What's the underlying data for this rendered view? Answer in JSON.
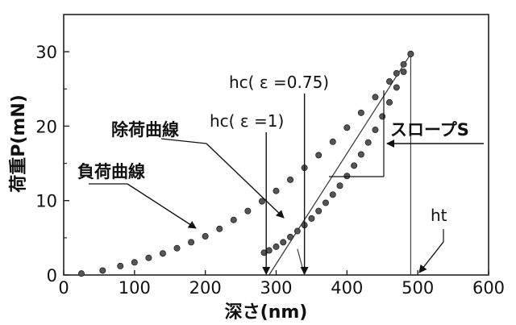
{
  "chart_data": {
    "type": "scatter",
    "xlabel": "深さ(nm)",
    "ylabel": "荷重P(mN)",
    "xlim": [
      0,
      600
    ],
    "ylim": [
      0,
      35
    ],
    "xticks": [
      0,
      100,
      200,
      300,
      400,
      500,
      600
    ],
    "yticks": [
      0,
      10,
      20,
      30
    ],
    "grid": false,
    "series": [
      {
        "name": "負荷曲線",
        "x": [
          25,
          55,
          80,
          100,
          120,
          140,
          160,
          180,
          200,
          220,
          240,
          260,
          280,
          300,
          320,
          340,
          360,
          380,
          400,
          420,
          440,
          460,
          470,
          480,
          490
        ],
        "y": [
          0.2,
          0.6,
          1.2,
          1.7,
          2.3,
          2.9,
          3.6,
          4.4,
          5.2,
          6.2,
          7.4,
          8.6,
          9.9,
          11.3,
          12.8,
          14.4,
          16.1,
          17.9,
          19.8,
          21.8,
          23.9,
          26.0,
          27.1,
          28.3,
          29.7
        ]
      },
      {
        "name": "除荷曲線",
        "x": [
          490,
          480,
          470,
          460,
          450,
          440,
          430,
          420,
          410,
          400,
          390,
          380,
          370,
          360,
          350,
          340,
          330,
          320,
          310,
          300,
          290,
          283
        ],
        "y": [
          29.7,
          27.3,
          25.2,
          23.2,
          21.3,
          19.5,
          17.8,
          16.2,
          14.7,
          13.3,
          12.0,
          10.8,
          9.7,
          8.6,
          7.6,
          6.7,
          5.9,
          5.1,
          4.4,
          3.8,
          3.3,
          3.0
        ]
      }
    ],
    "annotations": {
      "loading_label": "負荷曲線",
      "unloading_label": "除荷曲線",
      "slope_label": "スロープS",
      "hc1_label": "hc( ε =1)",
      "hc075_label": "hc( ε =0.75)",
      "ht_label": "ht"
    }
  }
}
